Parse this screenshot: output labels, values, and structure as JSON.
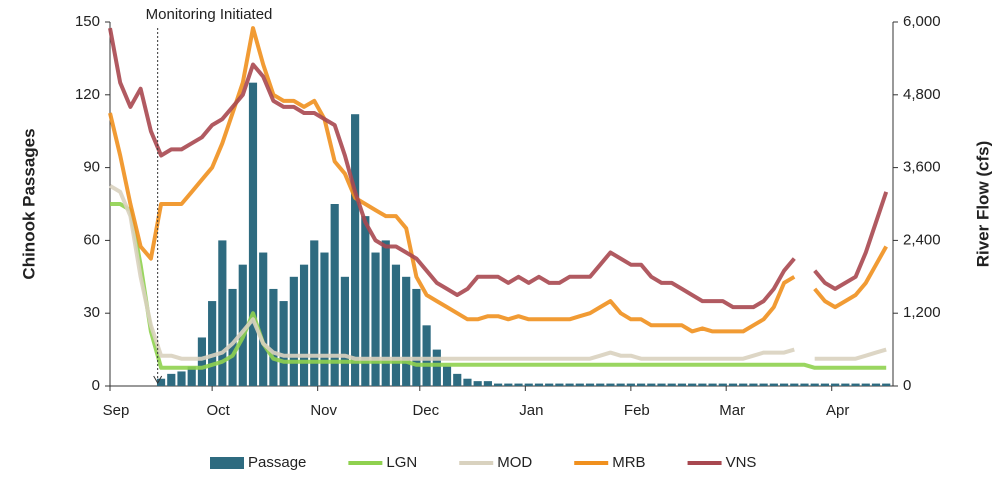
{
  "chart_data": {
    "type": "line",
    "y_label": "Chinook Passages",
    "y2_label": "River Flow (cfs)",
    "annotation": {
      "text": "Monitoring Initiated",
      "x": 14
    },
    "xlim": [
      0,
      230
    ],
    "xticks": [
      {
        "value": 0,
        "label": "Sep"
      },
      {
        "value": 30,
        "label": "Oct"
      },
      {
        "value": 61,
        "label": "Nov"
      },
      {
        "value": 91,
        "label": "Dec"
      },
      {
        "value": 122,
        "label": "Jan"
      },
      {
        "value": 153,
        "label": "Feb"
      },
      {
        "value": 181,
        "label": "Mar"
      },
      {
        "value": 212,
        "label": "Apr"
      }
    ],
    "ylim": [
      0,
      150
    ],
    "yticks": [
      0,
      30,
      60,
      90,
      120,
      150
    ],
    "y2lim": [
      0,
      6000
    ],
    "y2ticks": [
      0,
      {
        "value": 1200,
        "label": "1,200"
      },
      {
        "value": 2400,
        "label": "2,400"
      },
      {
        "value": 3600,
        "label": "3,600"
      },
      {
        "value": 4800,
        "label": "4,800"
      },
      {
        "value": 6000,
        "label": "6,000"
      }
    ],
    "x": [
      0,
      3,
      6,
      9,
      12,
      15,
      18,
      21,
      24,
      27,
      30,
      33,
      36,
      39,
      42,
      45,
      48,
      51,
      54,
      57,
      60,
      63,
      66,
      69,
      72,
      75,
      78,
      81,
      84,
      87,
      90,
      93,
      96,
      99,
      102,
      105,
      108,
      111,
      114,
      117,
      120,
      123,
      126,
      129,
      132,
      135,
      138,
      141,
      144,
      147,
      150,
      153,
      156,
      159,
      162,
      165,
      168,
      171,
      174,
      177,
      180,
      183,
      186,
      189,
      192,
      195,
      198,
      201,
      204,
      207,
      210,
      213,
      216,
      219,
      222,
      225,
      228
    ],
    "series": [
      {
        "name": "Passage",
        "type": "bar",
        "color": "#2e6b80",
        "values": [
          0,
          0,
          0,
          0,
          0,
          3,
          5,
          6,
          8,
          20,
          35,
          60,
          40,
          50,
          125,
          55,
          40,
          35,
          45,
          50,
          60,
          55,
          75,
          45,
          112,
          70,
          55,
          60,
          50,
          45,
          40,
          25,
          15,
          8,
          5,
          3,
          2,
          2,
          1,
          1,
          1,
          1,
          1,
          1,
          1,
          1,
          1,
          1,
          1,
          1,
          1,
          1,
          1,
          1,
          1,
          1,
          1,
          1,
          1,
          1,
          1,
          1,
          1,
          1,
          1,
          1,
          1,
          1,
          1,
          1,
          1,
          1,
          1,
          1,
          1,
          1,
          1
        ]
      },
      {
        "name": "LGN",
        "axis": "y2",
        "color": "#8fd14f",
        "values": [
          3000,
          3000,
          2900,
          2000,
          900,
          300,
          300,
          300,
          300,
          300,
          350,
          400,
          500,
          800,
          1200,
          700,
          450,
          400,
          400,
          400,
          400,
          400,
          400,
          400,
          400,
          400,
          400,
          400,
          400,
          400,
          350,
          350,
          350,
          350,
          350,
          350,
          350,
          350,
          350,
          350,
          350,
          350,
          350,
          350,
          350,
          350,
          350,
          350,
          350,
          350,
          350,
          350,
          350,
          350,
          350,
          350,
          350,
          350,
          350,
          350,
          350,
          350,
          350,
          350,
          350,
          350,
          350,
          350,
          350,
          300,
          300,
          300,
          300,
          300,
          300,
          300,
          300
        ]
      },
      {
        "name": "MOD",
        "axis": "y2",
        "color": "#d9d2bf",
        "values": [
          3300,
          3200,
          2800,
          1800,
          1000,
          500,
          500,
          450,
          450,
          450,
          500,
          550,
          700,
          900,
          1100,
          700,
          550,
          500,
          500,
          500,
          500,
          500,
          500,
          500,
          450,
          450,
          450,
          450,
          450,
          450,
          450,
          450,
          450,
          450,
          450,
          450,
          450,
          450,
          450,
          450,
          450,
          450,
          450,
          450,
          450,
          450,
          450,
          450,
          500,
          550,
          500,
          500,
          450,
          450,
          450,
          450,
          450,
          450,
          450,
          450,
          450,
          450,
          450,
          500,
          550,
          550,
          550,
          600,
          null,
          450,
          450,
          450,
          450,
          450,
          500,
          550,
          600
        ]
      },
      {
        "name": "MRB",
        "axis": "y2",
        "color": "#f0901e",
        "values": [
          4500,
          3800,
          3000,
          2300,
          2100,
          3000,
          3000,
          3000,
          3200,
          3400,
          3600,
          4000,
          4500,
          5000,
          5900,
          5300,
          4800,
          4700,
          4700,
          4600,
          4700,
          4400,
          3700,
          3500,
          3100,
          3000,
          2900,
          2800,
          2800,
          2600,
          1800,
          1500,
          1400,
          1300,
          1200,
          1100,
          1100,
          1150,
          1150,
          1100,
          1150,
          1100,
          1100,
          1100,
          1100,
          1100,
          1150,
          1200,
          1300,
          1400,
          1200,
          1100,
          1100,
          1000,
          1000,
          1000,
          1000,
          900,
          950,
          900,
          900,
          900,
          900,
          1000,
          1100,
          1300,
          1700,
          1800,
          null,
          1600,
          1400,
          1300,
          1400,
          1500,
          1700,
          2000,
          2300
        ]
      },
      {
        "name": "VNS",
        "axis": "y2",
        "color": "#a84850",
        "values": [
          5900,
          5000,
          4600,
          4900,
          4200,
          3800,
          3900,
          3900,
          4000,
          4100,
          4300,
          4400,
          4600,
          4800,
          5300,
          5100,
          4700,
          4600,
          4600,
          4500,
          4500,
          4400,
          4300,
          3800,
          3200,
          2700,
          2400,
          2300,
          2300,
          2200,
          2100,
          1900,
          1700,
          1600,
          1500,
          1600,
          1800,
          1800,
          1800,
          1700,
          1800,
          1700,
          1800,
          1700,
          1700,
          1800,
          1800,
          1800,
          2000,
          2200,
          2100,
          2000,
          2000,
          1800,
          1700,
          1700,
          1600,
          1500,
          1400,
          1400,
          1400,
          1300,
          1300,
          1300,
          1400,
          1600,
          1900,
          2100,
          null,
          1900,
          1700,
          1600,
          1700,
          1800,
          2200,
          2700,
          3200
        ]
      }
    ]
  }
}
